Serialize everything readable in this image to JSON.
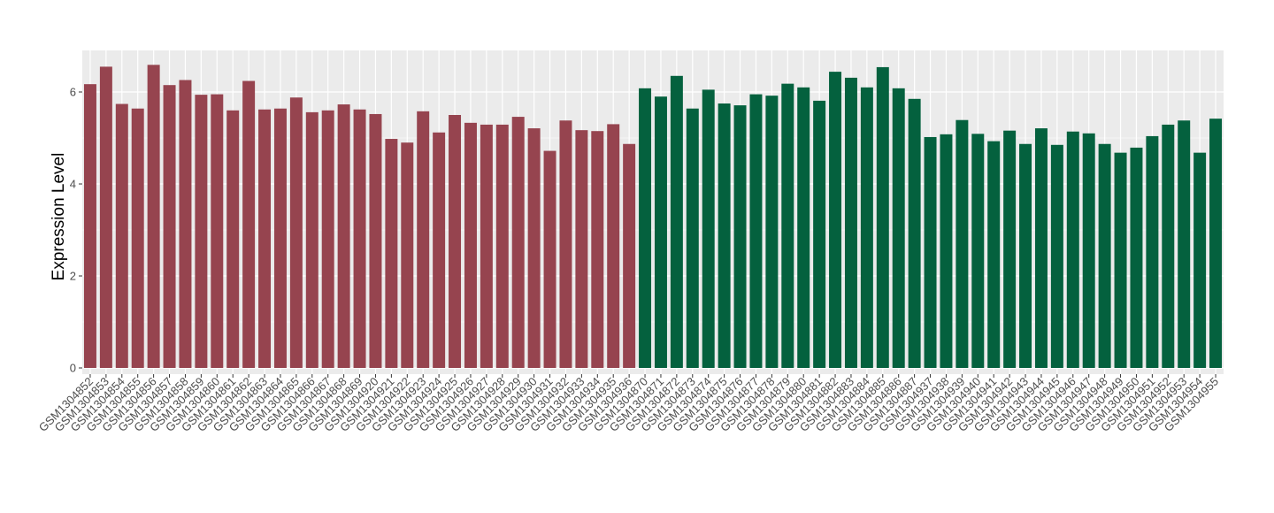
{
  "chart_data": {
    "type": "bar",
    "title": "",
    "xlabel": "",
    "ylabel": "Expression Level",
    "ylim": [
      0,
      6.9
    ],
    "yticks": [
      0,
      2,
      4,
      6
    ],
    "grid": true,
    "legend": "none",
    "colors": {
      "panel_background": "#ebebeb",
      "grid": "#ffffff",
      "group_1": "#96444f",
      "group_2": "#04613e"
    },
    "categories": [
      "GSM1304852",
      "GSM1304853",
      "GSM1304854",
      "GSM1304855",
      "GSM1304856",
      "GSM1304857",
      "GSM1304858",
      "GSM1304859",
      "GSM1304860",
      "GSM1304861",
      "GSM1304862",
      "GSM1304863",
      "GSM1304864",
      "GSM1304865",
      "GSM1304866",
      "GSM1304867",
      "GSM1304868",
      "GSM1304869",
      "GSM1304920",
      "GSM1304921",
      "GSM1304922",
      "GSM1304923",
      "GSM1304924",
      "GSM1304925",
      "GSM1304926",
      "GSM1304927",
      "GSM1304928",
      "GSM1304929",
      "GSM1304930",
      "GSM1304931",
      "GSM1304932",
      "GSM1304933",
      "GSM1304934",
      "GSM1304935",
      "GSM1304936",
      "GSM1304870",
      "GSM1304871",
      "GSM1304872",
      "GSM1304873",
      "GSM1304874",
      "GSM1304875",
      "GSM1304876",
      "GSM1304877",
      "GSM1304878",
      "GSM1304879",
      "GSM1304880",
      "GSM1304881",
      "GSM1304882",
      "GSM1304883",
      "GSM1304884",
      "GSM1304885",
      "GSM1304886",
      "GSM1304887",
      "GSM1304937",
      "GSM1304938",
      "GSM1304939",
      "GSM1304940",
      "GSM1304941",
      "GSM1304942",
      "GSM1304943",
      "GSM1304944",
      "GSM1304945",
      "GSM1304946",
      "GSM1304947",
      "GSM1304948",
      "GSM1304949",
      "GSM1304950",
      "GSM1304951",
      "GSM1304952",
      "GSM1304953",
      "GSM1304954",
      "GSM1304955"
    ],
    "values": [
      6.17,
      6.55,
      5.74,
      5.64,
      6.59,
      6.15,
      6.26,
      5.94,
      5.95,
      5.6,
      6.24,
      5.62,
      5.64,
      5.88,
      5.56,
      5.6,
      5.73,
      5.62,
      5.52,
      4.98,
      4.9,
      5.58,
      5.12,
      5.5,
      5.33,
      5.29,
      5.29,
      5.46,
      5.21,
      4.72,
      5.38,
      5.17,
      5.15,
      5.3,
      4.87,
      6.08,
      5.9,
      6.35,
      5.64,
      6.05,
      5.75,
      5.71,
      5.95,
      5.92,
      6.18,
      6.1,
      5.81,
      6.44,
      6.31,
      6.1,
      6.54,
      6.08,
      5.85,
      5.02,
      5.08,
      5.39,
      5.09,
      4.93,
      5.16,
      4.87,
      5.21,
      4.85,
      5.14,
      5.1,
      4.87,
      4.68,
      4.79,
      5.04,
      5.29,
      5.38,
      4.68,
      5.42
    ],
    "group_sizes": [
      35,
      37
    ]
  }
}
